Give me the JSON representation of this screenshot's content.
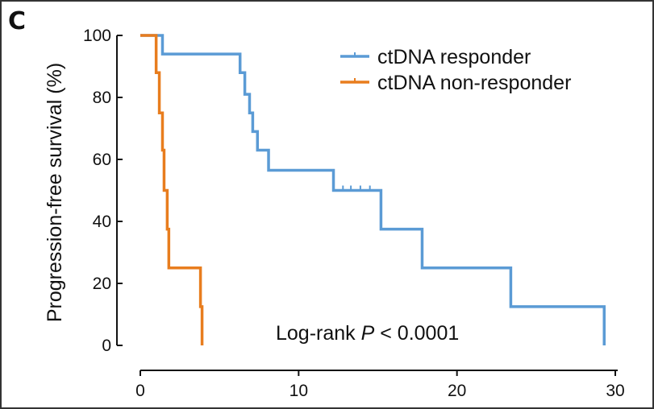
{
  "panel_label": "C",
  "chart_data": {
    "type": "line",
    "subtype": "kaplan-meier",
    "xlabel": "",
    "ylabel": "Progression-free survival (%)",
    "xlim": [
      0,
      30
    ],
    "ylim": [
      0,
      100
    ],
    "xticks": [
      0,
      10,
      20,
      30
    ],
    "yticks": [
      0,
      20,
      40,
      60,
      80,
      100
    ],
    "legend_position": "top-right",
    "annotation": {
      "prefix": "Log-rank ",
      "italic": "P",
      "suffix": " < 0.0001"
    },
    "series": [
      {
        "name": "ctDNA responder",
        "color": "#5b9bd5",
        "steps": [
          {
            "x": 0,
            "y": 100
          },
          {
            "x": 1.4,
            "y": 94
          },
          {
            "x": 6.3,
            "y": 88
          },
          {
            "x": 6.6,
            "y": 81
          },
          {
            "x": 6.9,
            "y": 75
          },
          {
            "x": 7.1,
            "y": 69
          },
          {
            "x": 7.4,
            "y": 63
          },
          {
            "x": 8.1,
            "y": 56.5
          },
          {
            "x": 12.2,
            "y": 50
          },
          {
            "x": 15.2,
            "y": 37.5
          },
          {
            "x": 17.8,
            "y": 25
          },
          {
            "x": 23.4,
            "y": 12.5
          },
          {
            "x": 29.3,
            "y": 0
          }
        ],
        "censors": [
          {
            "x": 12.8,
            "y": 50
          },
          {
            "x": 13.3,
            "y": 50
          },
          {
            "x": 13.9,
            "y": 50
          },
          {
            "x": 14.5,
            "y": 50
          }
        ]
      },
      {
        "name": "ctDNA non-responder",
        "color": "#e87d1e",
        "steps": [
          {
            "x": 0,
            "y": 100
          },
          {
            "x": 1.0,
            "y": 88
          },
          {
            "x": 1.2,
            "y": 75
          },
          {
            "x": 1.4,
            "y": 63
          },
          {
            "x": 1.5,
            "y": 50
          },
          {
            "x": 1.7,
            "y": 37.5
          },
          {
            "x": 1.8,
            "y": 25
          },
          {
            "x": 3.8,
            "y": 12.5
          },
          {
            "x": 3.9,
            "y": 0
          }
        ],
        "censors": []
      }
    ]
  }
}
